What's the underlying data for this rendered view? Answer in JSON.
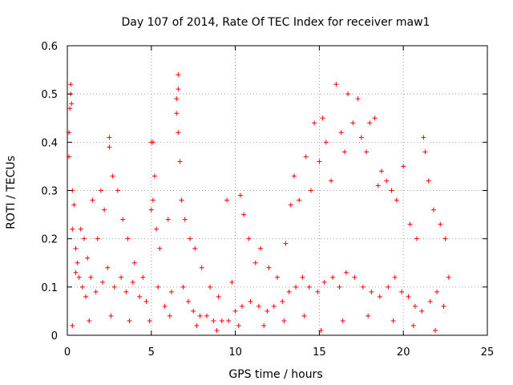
{
  "chart_data": {
    "type": "scatter",
    "title": "Day 107 of 2014, Rate Of TEC Index for receiver maw1",
    "xlabel": "GPS time / hours",
    "ylabel": "ROTI / TECUs",
    "xlim": [
      0,
      25
    ],
    "ylim": [
      0,
      0.6
    ],
    "xticks": [
      0,
      5,
      10,
      15,
      20,
      25
    ],
    "xtick_labels": [
      "0",
      "5",
      "10",
      "15",
      "20",
      "25"
    ],
    "yticks": [
      0,
      0.1,
      0.2,
      0.3,
      0.4,
      0.5,
      0.6
    ],
    "ytick_labels": [
      "0",
      "0.1",
      "0.2",
      "0.3",
      "0.4",
      "0.5",
      "0.6"
    ],
    "grid": true,
    "marker": "+",
    "color": "#ff0000",
    "series": [
      {
        "name": "ROTI",
        "points": [
          [
            0.1,
            0.37
          ],
          [
            0.1,
            0.42
          ],
          [
            0.15,
            0.47
          ],
          [
            0.2,
            0.52
          ],
          [
            0.2,
            0.5
          ],
          [
            0.25,
            0.48
          ],
          [
            0.3,
            0.3
          ],
          [
            0.3,
            0.22
          ],
          [
            0.4,
            0.27
          ],
          [
            0.5,
            0.18
          ],
          [
            0.6,
            0.15
          ],
          [
            0.7,
            0.12
          ],
          [
            0.8,
            0.22
          ],
          [
            1.0,
            0.2
          ],
          [
            1.2,
            0.16
          ],
          [
            1.5,
            0.28
          ],
          [
            1.8,
            0.2
          ],
          [
            2.0,
            0.3
          ],
          [
            2.2,
            0.26
          ],
          [
            2.5,
            0.41
          ],
          [
            2.5,
            0.39
          ],
          [
            2.7,
            0.33
          ],
          [
            3.0,
            0.3
          ],
          [
            3.3,
            0.24
          ],
          [
            3.6,
            0.2
          ],
          [
            4.0,
            0.15
          ],
          [
            4.5,
            0.12
          ],
          [
            5.0,
            0.4
          ],
          [
            5.1,
            0.4
          ],
          [
            5.2,
            0.33
          ],
          [
            5.1,
            0.28
          ],
          [
            5.0,
            0.26
          ],
          [
            5.3,
            0.22
          ],
          [
            5.5,
            0.18
          ],
          [
            6.0,
            0.24
          ],
          [
            6.6,
            0.54
          ],
          [
            6.6,
            0.51
          ],
          [
            6.5,
            0.49
          ],
          [
            6.5,
            0.46
          ],
          [
            6.6,
            0.42
          ],
          [
            6.7,
            0.36
          ],
          [
            6.8,
            0.28
          ],
          [
            7.0,
            0.24
          ],
          [
            7.3,
            0.2
          ],
          [
            7.6,
            0.18
          ],
          [
            8.0,
            0.14
          ],
          [
            8.5,
            0.1
          ],
          [
            9.0,
            0.08
          ],
          [
            9.5,
            0.28
          ],
          [
            9.8,
            0.11
          ],
          [
            10.3,
            0.29
          ],
          [
            10.5,
            0.25
          ],
          [
            10.8,
            0.2
          ],
          [
            11.2,
            0.15
          ],
          [
            11.5,
            0.18
          ],
          [
            12.0,
            0.14
          ],
          [
            12.5,
            0.12
          ],
          [
            13.0,
            0.19
          ],
          [
            13.3,
            0.27
          ],
          [
            13.5,
            0.33
          ],
          [
            13.8,
            0.28
          ],
          [
            14.2,
            0.37
          ],
          [
            14.5,
            0.3
          ],
          [
            14.7,
            0.44
          ],
          [
            15.0,
            0.36
          ],
          [
            15.2,
            0.45
          ],
          [
            15.4,
            0.4
          ],
          [
            15.7,
            0.32
          ],
          [
            16.0,
            0.52
          ],
          [
            16.3,
            0.42
          ],
          [
            16.5,
            0.38
          ],
          [
            16.7,
            0.5
          ],
          [
            17.0,
            0.44
          ],
          [
            17.3,
            0.49
          ],
          [
            17.5,
            0.41
          ],
          [
            17.8,
            0.38
          ],
          [
            18.0,
            0.44
          ],
          [
            18.3,
            0.45
          ],
          [
            18.5,
            0.31
          ],
          [
            18.7,
            0.34
          ],
          [
            19.0,
            0.32
          ],
          [
            19.3,
            0.3
          ],
          [
            19.6,
            0.28
          ],
          [
            20.0,
            0.35
          ],
          [
            20.4,
            0.23
          ],
          [
            20.8,
            0.2
          ],
          [
            21.2,
            0.41
          ],
          [
            21.3,
            0.38
          ],
          [
            21.5,
            0.32
          ],
          [
            21.8,
            0.26
          ],
          [
            22.2,
            0.23
          ],
          [
            22.5,
            0.2
          ],
          [
            22.7,
            0.12
          ],
          [
            0.5,
            0.13
          ],
          [
            0.9,
            0.1
          ],
          [
            1.1,
            0.08
          ],
          [
            1.4,
            0.12
          ],
          [
            1.7,
            0.09
          ],
          [
            2.1,
            0.11
          ],
          [
            2.4,
            0.14
          ],
          [
            2.8,
            0.1
          ],
          [
            3.2,
            0.12
          ],
          [
            3.5,
            0.09
          ],
          [
            3.9,
            0.11
          ],
          [
            4.3,
            0.08
          ],
          [
            4.7,
            0.07
          ],
          [
            5.4,
            0.1
          ],
          [
            5.8,
            0.06
          ],
          [
            6.2,
            0.09
          ],
          [
            6.9,
            0.1
          ],
          [
            7.2,
            0.07
          ],
          [
            7.5,
            0.05
          ],
          [
            7.9,
            0.04
          ],
          [
            8.3,
            0.04
          ],
          [
            8.7,
            0.03
          ],
          [
            9.2,
            0.03
          ],
          [
            9.6,
            0.03
          ],
          [
            10.0,
            0.05
          ],
          [
            10.4,
            0.06
          ],
          [
            10.9,
            0.07
          ],
          [
            11.4,
            0.06
          ],
          [
            11.9,
            0.05
          ],
          [
            12.3,
            0.06
          ],
          [
            12.8,
            0.07
          ],
          [
            13.2,
            0.09
          ],
          [
            13.6,
            0.1
          ],
          [
            14.0,
            0.12
          ],
          [
            14.4,
            0.1
          ],
          [
            14.9,
            0.09
          ],
          [
            15.3,
            0.11
          ],
          [
            15.8,
            0.12
          ],
          [
            16.2,
            0.1
          ],
          [
            16.6,
            0.13
          ],
          [
            17.1,
            0.12
          ],
          [
            17.6,
            0.1
          ],
          [
            18.1,
            0.09
          ],
          [
            18.6,
            0.08
          ],
          [
            19.1,
            0.1
          ],
          [
            19.5,
            0.12
          ],
          [
            19.9,
            0.09
          ],
          [
            20.3,
            0.08
          ],
          [
            20.7,
            0.06
          ],
          [
            21.1,
            0.05
          ],
          [
            21.6,
            0.07
          ],
          [
            22.0,
            0.09
          ],
          [
            22.4,
            0.06
          ],
          [
            0.3,
            0.02
          ],
          [
            1.3,
            0.03
          ],
          [
            2.6,
            0.04
          ],
          [
            3.7,
            0.03
          ],
          [
            4.9,
            0.03
          ],
          [
            6.1,
            0.04
          ],
          [
            7.7,
            0.02
          ],
          [
            8.9,
            0.01
          ],
          [
            10.2,
            0.02
          ],
          [
            11.7,
            0.02
          ],
          [
            12.9,
            0.03
          ],
          [
            14.1,
            0.04
          ],
          [
            15.1,
            0.01
          ],
          [
            16.4,
            0.03
          ],
          [
            17.9,
            0.04
          ],
          [
            19.4,
            0.03
          ],
          [
            20.6,
            0.02
          ],
          [
            21.9,
            0.01
          ]
        ]
      }
    ]
  }
}
